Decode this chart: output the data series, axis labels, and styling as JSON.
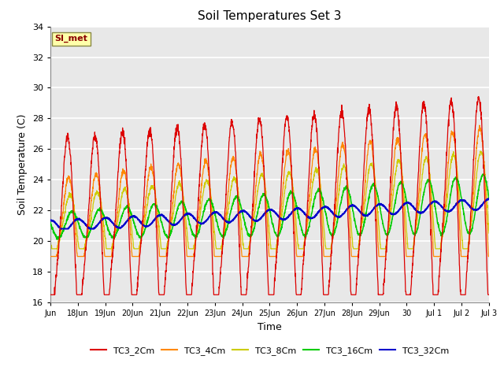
{
  "title": "Soil Temperatures Set 3",
  "xlabel": "Time",
  "ylabel": "Soil Temperature (C)",
  "ylim": [
    16,
    34
  ],
  "yticks": [
    16,
    18,
    20,
    22,
    24,
    26,
    28,
    30,
    32,
    34
  ],
  "plot_bg_color": "#e8e8e8",
  "fig_bg_color": "#ffffff",
  "colors": {
    "TC3_2Cm": "#dd0000",
    "TC3_4Cm": "#ff8800",
    "TC3_8Cm": "#cccc00",
    "TC3_16Cm": "#00cc00",
    "TC3_32Cm": "#0000cc"
  },
  "legend_label": "SI_met",
  "x_tick_labels": [
    "Jun",
    "18Jun",
    "19Jun",
    "20Jun",
    "21Jun",
    "22Jun",
    "23Jun",
    "24Jun",
    "25Jun",
    "26Jun",
    "27Jun",
    "28Jun",
    "29Jun",
    "30",
    "Jul 1",
    "Jul 2",
    "Jul 3"
  ],
  "linewidth_thin": 0.9,
  "linewidth_mid": 1.1,
  "linewidth_thick": 1.4
}
